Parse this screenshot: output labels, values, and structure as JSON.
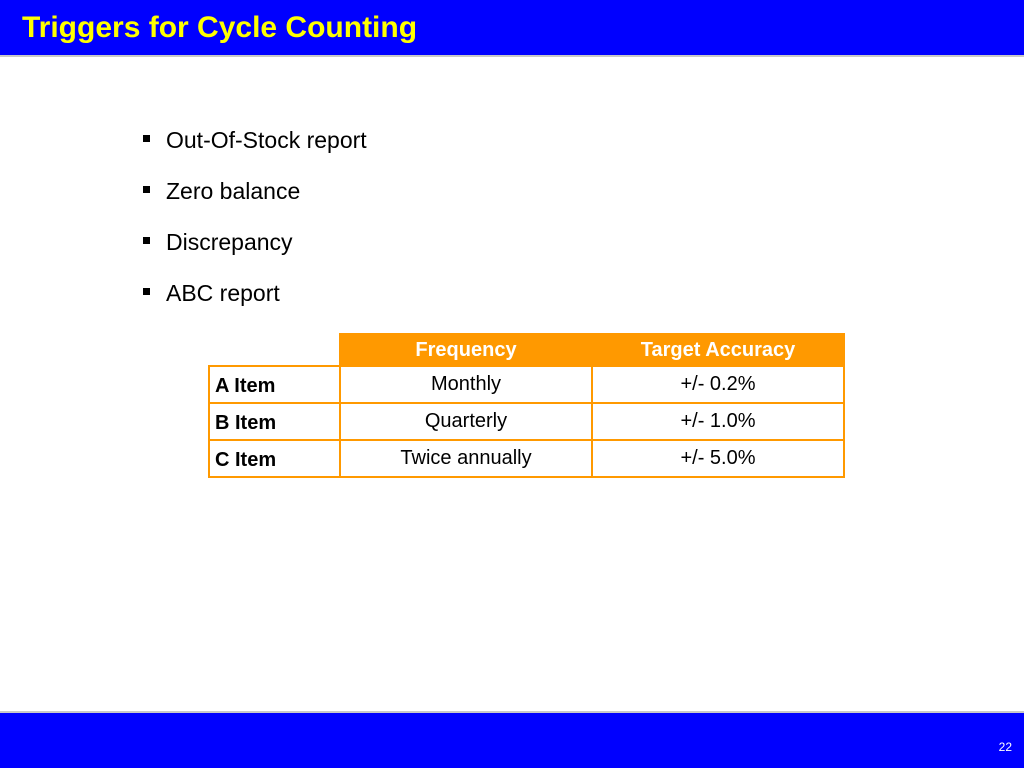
{
  "slide": {
    "title": "Triggers for Cycle Counting",
    "page_number": "22"
  },
  "bullets": [
    {
      "text": "Out-Of-Stock report"
    },
    {
      "text": "Zero balance"
    },
    {
      "text": "Discrepancy"
    },
    {
      "text": "ABC report"
    }
  ],
  "table": {
    "headers": [
      "",
      "Frequency",
      "Target Accuracy"
    ],
    "rows": [
      {
        "label": "A Item",
        "frequency": "Monthly",
        "accuracy": "+/- 0.2%"
      },
      {
        "label": "B Item",
        "frequency": "Quarterly",
        "accuracy": "+/- 1.0%"
      },
      {
        "label": "C Item",
        "frequency": "Twice annually",
        "accuracy": "+/- 5.0%"
      }
    ]
  },
  "colors": {
    "bar_background": "#0000ff",
    "title_text": "#ffff00",
    "table_accent": "#ff9900"
  }
}
